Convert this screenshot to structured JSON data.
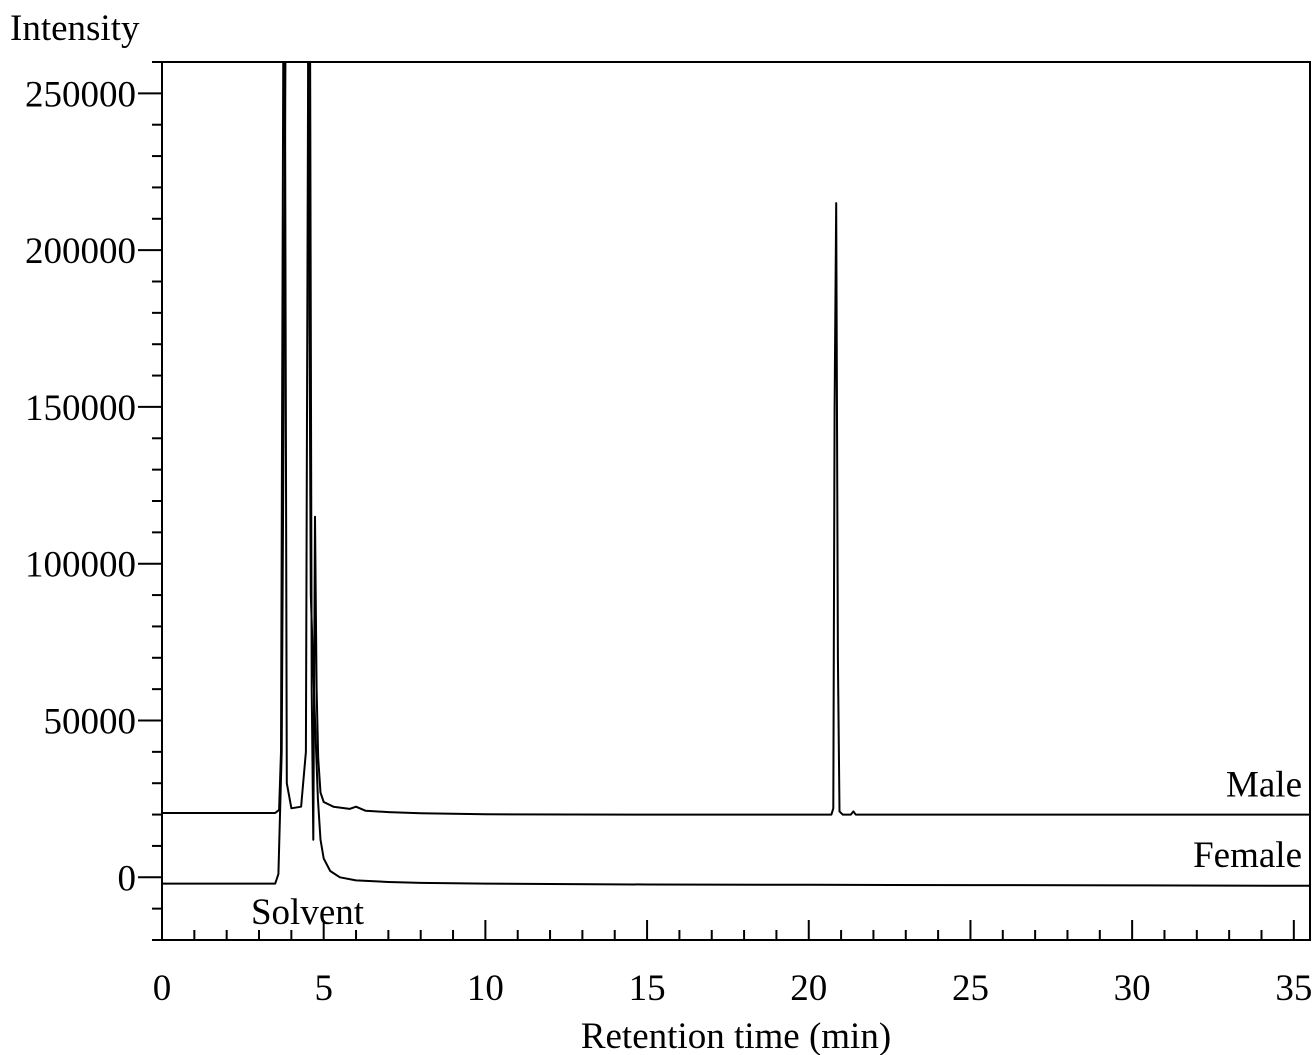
{
  "chart_data": {
    "type": "line",
    "ylabel": "Intensity",
    "xlabel": "Retention time (min)",
    "xlim": [
      0,
      35.5
    ],
    "ylim": [
      -20000,
      260000
    ],
    "grid": false,
    "x_ticks": [
      0,
      5,
      10,
      15,
      20,
      25,
      30,
      35
    ],
    "x_tick_labels": [
      "0",
      "5",
      "10",
      "15",
      "20",
      "25",
      "30",
      "35"
    ],
    "y_ticks": [
      0,
      50000,
      100000,
      150000,
      200000,
      250000
    ],
    "y_tick_labels": [
      "0",
      "50000",
      "100000",
      "150000",
      "200000",
      "250000"
    ],
    "annotations": [
      {
        "text": "Solvent",
        "x": 4.5,
        "y": -11000
      }
    ],
    "series": [
      {
        "name": "Male",
        "baseline": 20000,
        "points": [
          [
            0,
            20500
          ],
          [
            3.5,
            20500
          ],
          [
            3.62,
            21500
          ],
          [
            3.68,
            40000
          ],
          [
            3.75,
            265000
          ],
          [
            3.8,
            265000
          ],
          [
            3.86,
            30000
          ],
          [
            4.0,
            22000
          ],
          [
            4.3,
            22500
          ],
          [
            4.45,
            40000
          ],
          [
            4.52,
            265000
          ],
          [
            4.58,
            265000
          ],
          [
            4.63,
            60000
          ],
          [
            4.68,
            12000
          ],
          [
            4.73,
            115000
          ],
          [
            4.78,
            60000
          ],
          [
            4.83,
            38000
          ],
          [
            4.9,
            27000
          ],
          [
            5.0,
            24000
          ],
          [
            5.3,
            22500
          ],
          [
            5.8,
            21800
          ],
          [
            6.0,
            22500
          ],
          [
            6.3,
            21200
          ],
          [
            7,
            20800
          ],
          [
            8,
            20400
          ],
          [
            10,
            20100
          ],
          [
            15,
            20000
          ],
          [
            20.7,
            20000
          ],
          [
            20.76,
            22000
          ],
          [
            20.8,
            150000
          ],
          [
            20.85,
            215000
          ],
          [
            20.9,
            70000
          ],
          [
            20.95,
            21000
          ],
          [
            21.05,
            20000
          ],
          [
            21.3,
            20000
          ],
          [
            21.38,
            21000
          ],
          [
            21.45,
            20000
          ],
          [
            25,
            20000
          ],
          [
            30,
            20000
          ],
          [
            35.5,
            20000
          ]
        ]
      },
      {
        "name": "Female",
        "baseline": -2500,
        "points": [
          [
            0,
            -2000
          ],
          [
            3.5,
            -2000
          ],
          [
            3.6,
            1000
          ],
          [
            3.7,
            40000
          ],
          [
            3.75,
            130000
          ],
          [
            3.82,
            265000
          ],
          [
            4.52,
            265000
          ],
          [
            4.6,
            90000
          ],
          [
            4.68,
            66000
          ],
          [
            4.75,
            45000
          ],
          [
            4.82,
            25000
          ],
          [
            4.9,
            12000
          ],
          [
            5.0,
            6000
          ],
          [
            5.2,
            2000
          ],
          [
            5.5,
            0
          ],
          [
            6.0,
            -1000
          ],
          [
            7,
            -1500
          ],
          [
            8,
            -1800
          ],
          [
            10,
            -2000
          ],
          [
            15,
            -2300
          ],
          [
            20,
            -2400
          ],
          [
            25,
            -2500
          ],
          [
            30,
            -2600
          ],
          [
            35.5,
            -2700
          ]
        ]
      }
    ]
  }
}
